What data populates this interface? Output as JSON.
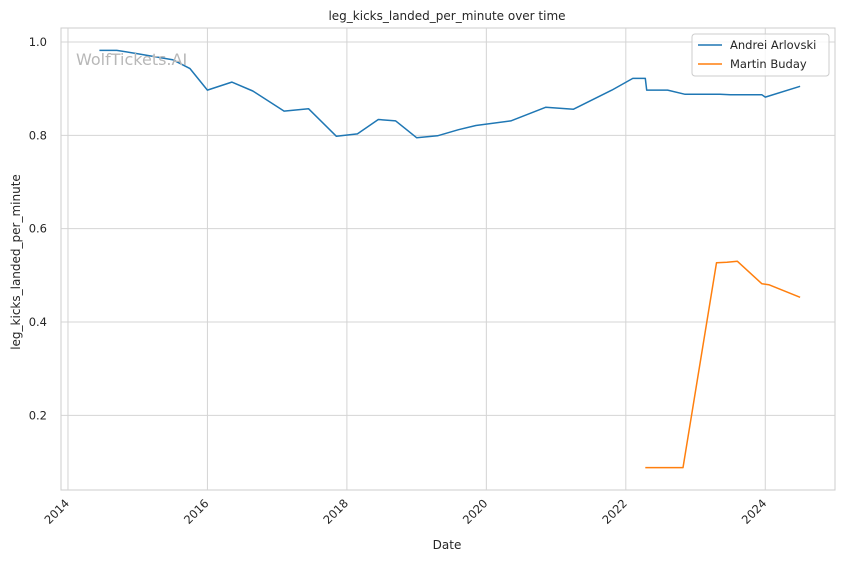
{
  "chart_data": {
    "type": "line",
    "title": "leg_kicks_landed_per_minute over time",
    "xlabel": "Date",
    "ylabel": "leg_kicks_landed_per_minute",
    "watermark": "WolfTickets.AI",
    "xlim": [
      2013.9,
      2025.0
    ],
    "ylim": [
      0.04,
      1.03
    ],
    "x_ticks": [
      2014,
      2016,
      2018,
      2020,
      2022,
      2024
    ],
    "y_ticks": [
      0.2,
      0.4,
      0.6,
      0.8,
      1.0
    ],
    "y_tick_labels": [
      "0.2",
      "0.4",
      "0.6",
      "0.8",
      "1.0"
    ],
    "grid": true,
    "legend_position": "top-right",
    "series": [
      {
        "name": "Andrei Arlovski",
        "color": "#1f77b4",
        "x": [
          2014.45,
          2014.7,
          2015.0,
          2015.5,
          2015.75,
          2016.0,
          2016.35,
          2016.65,
          2017.1,
          2017.45,
          2017.85,
          2018.15,
          2018.45,
          2018.7,
          2019.0,
          2019.3,
          2019.6,
          2019.85,
          2020.35,
          2020.85,
          2021.25,
          2021.8,
          2022.1,
          2022.28,
          2022.3,
          2022.6,
          2022.85,
          2023.35,
          2023.5,
          2023.95,
          2024.0,
          2024.5
        ],
        "y": [
          0.982,
          0.982,
          0.975,
          0.962,
          0.943,
          0.897,
          0.914,
          0.895,
          0.852,
          0.857,
          0.798,
          0.803,
          0.834,
          0.831,
          0.795,
          0.799,
          0.812,
          0.821,
          0.831,
          0.86,
          0.856,
          0.897,
          0.922,
          0.922,
          0.897,
          0.897,
          0.888,
          0.888,
          0.887,
          0.887,
          0.882,
          0.905
        ]
      },
      {
        "name": "Martin Buday",
        "color": "#ff7f0e",
        "x": [
          2022.28,
          2022.82,
          2023.3,
          2023.45,
          2023.6,
          2023.95,
          2024.05,
          2024.5
        ],
        "y": [
          0.088,
          0.088,
          0.527,
          0.528,
          0.53,
          0.482,
          0.48,
          0.453
        ]
      }
    ]
  }
}
